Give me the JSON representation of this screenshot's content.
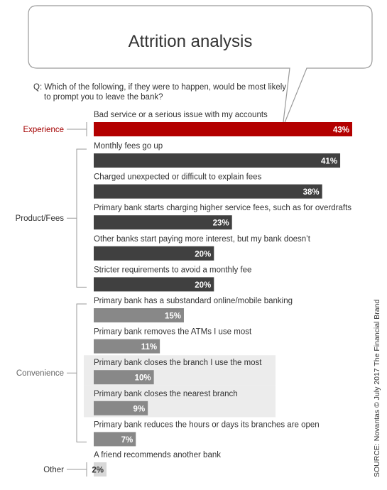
{
  "chart_data": {
    "type": "bar",
    "title": "Attrition analysis",
    "question": [
      "Q: Which of the following, if they were to happen, would be most likely",
      "to prompt you to leave the bank?"
    ],
    "source": "SOURCE: Novantas © July 2017  The Financial Brand",
    "unit": "%",
    "xlim": [
      0,
      43
    ],
    "groups": [
      {
        "name": "Experience",
        "label_color": "#a40000",
        "bar_color": "#b30000",
        "value_color": "#ffffff",
        "items": [
          {
            "label": "Bad service or a serious issue with my accounts",
            "value": 43
          }
        ]
      },
      {
        "name": "Product/Fees",
        "label_color": "#333333",
        "bar_color": "#404040",
        "value_color": "#ffffff",
        "items": [
          {
            "label": "Monthly fees go up",
            "value": 41
          },
          {
            "label": "Charged unexpected or difficult to explain fees",
            "value": 38
          },
          {
            "label": "Primary bank starts charging higher service fees, such as for overdrafts",
            "value": 23
          },
          {
            "label": "Other banks start paying more interest, but my bank doesn’t",
            "value": 20
          },
          {
            "label": "Stricter requirements to avoid a monthly fee",
            "value": 20
          }
        ]
      },
      {
        "name": "Convenience",
        "label_color": "#666666",
        "bar_color": "#888888",
        "value_color": "#ffffff",
        "items": [
          {
            "label": "Primary bank has a substandard online/mobile banking",
            "value": 15
          },
          {
            "label": "Primary bank removes the ATMs I use most",
            "value": 11
          },
          {
            "label": "Primary bank closes the branch I use the most",
            "value": 10,
            "highlight": true
          },
          {
            "label": "Primary bank closes the nearest branch",
            "value": 9,
            "highlight": true
          },
          {
            "label": "Primary bank reduces the hours or days its branches are open",
            "value": 7
          }
        ]
      },
      {
        "name": "Other",
        "label_color": "#333333",
        "bar_color": "#d8d8d8",
        "value_color": "#333333",
        "items": [
          {
            "label": "A friend recommends another bank",
            "value": 2
          }
        ]
      }
    ]
  }
}
